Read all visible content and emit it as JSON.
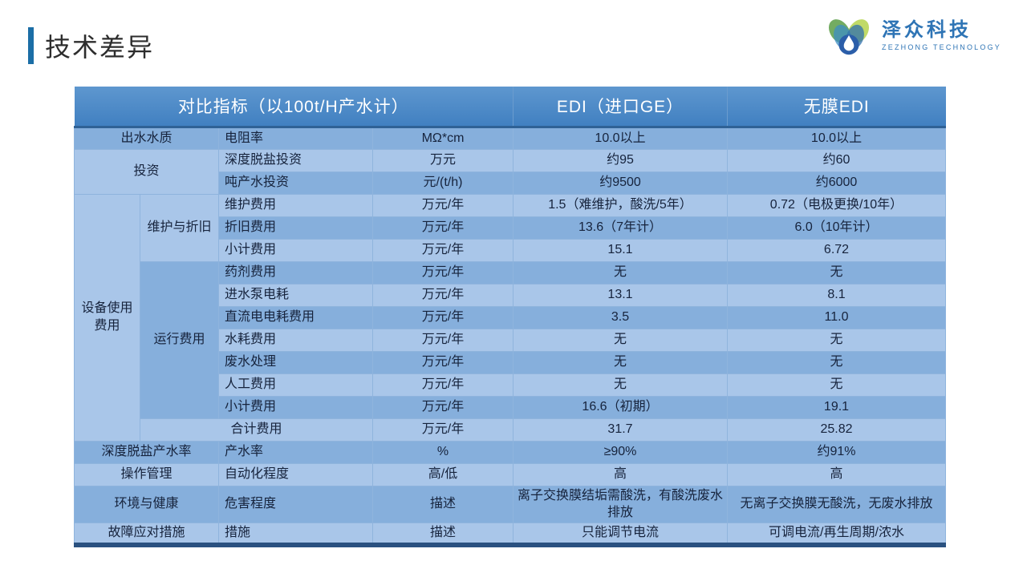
{
  "slide": {
    "title": "技术差异"
  },
  "logo": {
    "name": "泽众科技",
    "subtitle": "ZEZHONG TECHNOLOGY"
  },
  "colors": {
    "accent_bar": "#1b6ea6",
    "header_bg": "#4a87c6",
    "band_dark": "#86afdc",
    "band_light": "#a9c6e9",
    "table_bottom_border": "#2a5180",
    "logo_blue": "#2e74b5"
  },
  "table": {
    "header": [
      {
        "text": "对比指标（以100t/H产水计）",
        "colspan": 4
      },
      {
        "text": "EDI（进口GE）",
        "colspan": 1
      },
      {
        "text": "无膜EDI",
        "colspan": 1
      }
    ],
    "rows": [
      [
        {
          "text": "出水水质",
          "col": 0,
          "colspan": 2
        },
        {
          "text": "电阻率",
          "col": 2
        },
        {
          "text": "MΩ*cm",
          "col": 3
        },
        {
          "text": "10.0以上",
          "col": 4
        },
        {
          "text": "10.0以上",
          "col": 5
        }
      ],
      [
        {
          "text": "投资",
          "col": 0,
          "colspan": 2,
          "rowspan": 2
        },
        {
          "text": "深度脱盐投资",
          "col": 2
        },
        {
          "text": "万元",
          "col": 3
        },
        {
          "text": "约95",
          "col": 4
        },
        {
          "text": "约60",
          "col": 5
        }
      ],
      [
        {
          "text": "吨产水投资",
          "col": 2
        },
        {
          "text": "元/(t/h)",
          "col": 3
        },
        {
          "text": "约9500",
          "col": 4
        },
        {
          "text": "约6000",
          "col": 5
        }
      ],
      [
        {
          "text": "设备使用\n费用",
          "col": 0,
          "rowspan": 11
        },
        {
          "text": "维护与折旧",
          "col": 1,
          "rowspan": 3
        },
        {
          "text": "维护费用",
          "col": 2
        },
        {
          "text": "万元/年",
          "col": 3
        },
        {
          "text": "1.5（难维护，酸洗/5年）",
          "col": 4
        },
        {
          "text": "0.72（电极更换/10年）",
          "col": 5
        }
      ],
      [
        {
          "text": "折旧费用",
          "col": 2
        },
        {
          "text": "万元/年",
          "col": 3
        },
        {
          "text": "13.6（7年计）",
          "col": 4
        },
        {
          "text": "6.0（10年计）",
          "col": 5
        }
      ],
      [
        {
          "text": "小计费用",
          "col": 2
        },
        {
          "text": "万元/年",
          "col": 3
        },
        {
          "text": "15.1",
          "col": 4
        },
        {
          "text": "6.72",
          "col": 5
        }
      ],
      [
        {
          "text": "运行费用",
          "col": 1,
          "rowspan": 7
        },
        {
          "text": "药剂费用",
          "col": 2
        },
        {
          "text": "万元/年",
          "col": 3
        },
        {
          "text": "无",
          "col": 4
        },
        {
          "text": "无",
          "col": 5
        }
      ],
      [
        {
          "text": "进水泵电耗",
          "col": 2
        },
        {
          "text": "万元/年",
          "col": 3
        },
        {
          "text": "13.1",
          "col": 4
        },
        {
          "text": "8.1",
          "col": 5
        }
      ],
      [
        {
          "text": "直流电电耗费用",
          "col": 2
        },
        {
          "text": "万元/年",
          "col": 3
        },
        {
          "text": "3.5",
          "col": 4
        },
        {
          "text": "11.0",
          "col": 5
        }
      ],
      [
        {
          "text": "水耗费用",
          "col": 2
        },
        {
          "text": "万元/年",
          "col": 3
        },
        {
          "text": "无",
          "col": 4
        },
        {
          "text": "无",
          "col": 5
        }
      ],
      [
        {
          "text": "废水处理",
          "col": 2
        },
        {
          "text": "万元/年",
          "col": 3
        },
        {
          "text": "无",
          "col": 4
        },
        {
          "text": "无",
          "col": 5
        }
      ],
      [
        {
          "text": "人工费用",
          "col": 2
        },
        {
          "text": "万元/年",
          "col": 3
        },
        {
          "text": "无",
          "col": 4
        },
        {
          "text": "无",
          "col": 5
        }
      ],
      [
        {
          "text": "小计费用",
          "col": 2
        },
        {
          "text": "万元/年",
          "col": 3
        },
        {
          "text": "16.6（初期）",
          "col": 4
        },
        {
          "text": "19.1",
          "col": 5
        }
      ],
      [
        {
          "text": "合计费用",
          "col": 1,
          "colspan": 2
        },
        {
          "text": "万元/年",
          "col": 3
        },
        {
          "text": "31.7",
          "col": 4
        },
        {
          "text": "25.82",
          "col": 5
        }
      ],
      [
        {
          "text": "深度脱盐产水率",
          "col": 0,
          "colspan": 2
        },
        {
          "text": "产水率",
          "col": 2
        },
        {
          "text": "%",
          "col": 3
        },
        {
          "text": "≥90%",
          "col": 4
        },
        {
          "text": "约91%",
          "col": 5
        }
      ],
      [
        {
          "text": "操作管理",
          "col": 0,
          "colspan": 2
        },
        {
          "text": "自动化程度",
          "col": 2
        },
        {
          "text": "高/低",
          "col": 3
        },
        {
          "text": "高",
          "col": 4
        },
        {
          "text": "高",
          "col": 5
        }
      ],
      [
        {
          "text": "环境与健康",
          "col": 0,
          "colspan": 2
        },
        {
          "text": "危害程度",
          "col": 2
        },
        {
          "text": "描述",
          "col": 3
        },
        {
          "text": "离子交换膜结垢需酸洗，有酸洗废水排放",
          "col": 4
        },
        {
          "text": "无离子交换膜无酸洗，无废水排放",
          "col": 5
        }
      ],
      [
        {
          "text": "故障应对措施",
          "col": 0,
          "colspan": 2
        },
        {
          "text": "措施",
          "col": 2
        },
        {
          "text": "描述",
          "col": 3
        },
        {
          "text": "只能调节电流",
          "col": 4
        },
        {
          "text": "可调电流/再生周期/浓水",
          "col": 5
        }
      ]
    ]
  }
}
